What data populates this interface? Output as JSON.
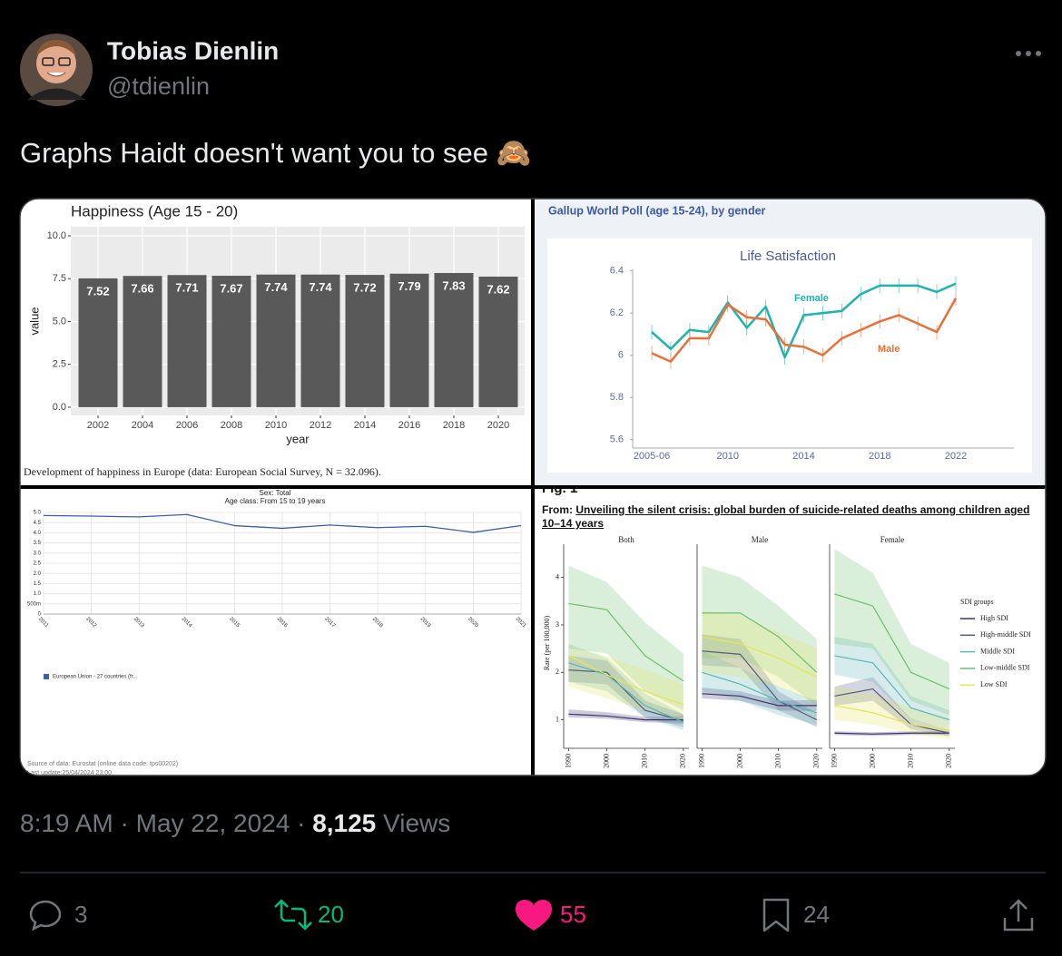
{
  "tweet": {
    "name": "Tobias Dienlin",
    "handle": "@tdienlin",
    "text": "Graphs Haidt doesn't want you to see 🙈",
    "time": "8:19 AM",
    "separator": "·",
    "date": "May 22, 2024",
    "views": "8,125",
    "views_label": "Views",
    "replies": 3,
    "reposts": 20,
    "likes": 55,
    "bookmarks": 24
  },
  "chart_data": [
    {
      "type": "bar",
      "title": "Happiness (Age 15 - 20)",
      "categories": [
        "2002",
        "2004",
        "2006",
        "2008",
        "2010",
        "2012",
        "2014",
        "2016",
        "2018",
        "2020"
      ],
      "values": [
        7.52,
        7.66,
        7.71,
        7.67,
        7.74,
        7.74,
        7.72,
        7.79,
        7.83,
        7.62
      ],
      "color": "#595959",
      "ylim": [
        -0.48,
        10.53
      ],
      "yticks": [
        {
          "value": 0,
          "label": "0.0"
        },
        2.5,
        {
          "value": 5,
          "label": "5.0"
        },
        7.5,
        {
          "value": 10,
          "label": "10.0"
        }
      ],
      "xlabel": "year",
      "ylabel": "value",
      "caption": "Development of happiness in Europe (data: European Social Survey, N = 32.096).",
      "grid": true
    },
    {
      "type": "line",
      "subtitle": "Gallup World Poll (age 15-24), by gender",
      "title": "Life Satisfaction",
      "categories": [
        "2005-06",
        null,
        null,
        null,
        "2010",
        null,
        null,
        null,
        "2014",
        null,
        null,
        null,
        "2018",
        null,
        null,
        null,
        "2022"
      ],
      "series": [
        {
          "name": "Female",
          "color": "#1fb3ae",
          "values": [
            6.11,
            6.03,
            6.12,
            6.11,
            6.25,
            6.13,
            6.23,
            5.99,
            6.19,
            6.2,
            6.21,
            6.29,
            6.33,
            6.33,
            6.33,
            6.3,
            6.34
          ]
        },
        {
          "name": "Male",
          "color": "#e8703a",
          "values": [
            6.01,
            5.97,
            6.08,
            6.08,
            6.24,
            6.18,
            6.17,
            6.05,
            6.04,
            6.0,
            6.08,
            6.12,
            6.16,
            6.19,
            6.15,
            6.11,
            6.27
          ]
        }
      ],
      "ylim": [
        5.56,
        6.45
      ],
      "yticks": [
        5.6,
        5.8,
        6,
        6.2,
        6.4
      ]
    },
    {
      "type": "line",
      "title": "Sex: Total",
      "subtitle": "Age class: From 15 to 19 years",
      "categories": [
        "2011",
        "2012",
        "2013",
        "2014",
        "2015",
        "2016",
        "2017",
        "2018",
        "2019",
        "2020",
        "2021"
      ],
      "series": [
        {
          "name": "European Union - 27 countries (fr...",
          "color": "#3c5fa8",
          "values": [
            4.85,
            4.82,
            4.78,
            4.9,
            4.35,
            4.22,
            4.38,
            4.25,
            4.32,
            4.02,
            4.35
          ]
        }
      ],
      "ylim": [
        0,
        5.2
      ],
      "yticks": [
        0,
        {
          "value": 0.5,
          "label": "500m"
        },
        {
          "value": 1,
          "label": "1.0"
        },
        1.5,
        {
          "value": 2,
          "label": "2.0"
        },
        2.5,
        {
          "value": 3,
          "label": "3.0"
        },
        3.5,
        {
          "value": 4,
          "label": "4.0"
        },
        4.5,
        {
          "value": 5,
          "label": "5.0"
        }
      ],
      "grid": true,
      "source": "Source of data: Eurostat (online data code: tps00202)",
      "updated": "Last update:25/04/2024 23:00"
    },
    {
      "type": "line",
      "figure_label": "Fig. 1",
      "header": "From: ",
      "title": "Unveiling the silent crisis: global burden of suicide-related deaths among children aged 10–14 years",
      "panel_titles": [
        "Both",
        "Male",
        "Female"
      ],
      "x": [
        1990,
        2000,
        2010,
        2020
      ],
      "xlim": [
        1988,
        2021
      ],
      "xticks": [
        1990,
        2000,
        2010,
        2020
      ],
      "ylabel": "Rate (per 100,000)",
      "ylim": [
        0.4,
        4.7
      ],
      "yticks": [
        1,
        2,
        3,
        4
      ],
      "legend_title": "SDI groups",
      "series": [
        {
          "name": "High SDI",
          "color": "#3d2f6e",
          "panels": [
            {
              "values": [
                1.12,
                1.08,
                1.0,
                1.0
              ],
              "lower": [
                1.05,
                1.02,
                0.95,
                0.92
              ],
              "upper": [
                1.22,
                1.16,
                1.06,
                1.08
              ]
            },
            {
              "values": [
                1.55,
                1.5,
                1.3,
                1.3
              ],
              "lower": [
                1.45,
                1.4,
                1.2,
                1.18
              ],
              "upper": [
                1.68,
                1.6,
                1.4,
                1.42
              ]
            },
            {
              "values": [
                0.72,
                0.7,
                0.72,
                0.72
              ],
              "lower": [
                0.68,
                0.66,
                0.68,
                0.68
              ],
              "upper": [
                0.76,
                0.74,
                0.76,
                0.76
              ]
            }
          ]
        },
        {
          "name": "High-middle SDI",
          "color": "#505d7e",
          "panels": [
            {
              "values": [
                2.05,
                2.0,
                1.2,
                0.98
              ],
              "lower": [
                1.8,
                1.75,
                1.05,
                0.85
              ],
              "upper": [
                2.35,
                2.25,
                1.4,
                1.12
              ]
            },
            {
              "values": [
                2.45,
                2.38,
                1.4,
                1.0
              ],
              "lower": [
                2.15,
                2.1,
                1.2,
                0.85
              ],
              "upper": [
                2.8,
                2.7,
                1.6,
                1.15
              ]
            },
            {
              "values": [
                1.5,
                1.65,
                0.9,
                0.72
              ],
              "lower": [
                1.3,
                1.4,
                0.8,
                0.65
              ],
              "upper": [
                1.7,
                1.9,
                1.02,
                0.8
              ]
            }
          ]
        },
        {
          "name": "Middle SDI",
          "color": "#5bb5b5",
          "panels": [
            {
              "values": [
                2.2,
                1.95,
                1.3,
                0.95
              ],
              "lower": [
                1.8,
                1.6,
                1.05,
                0.78
              ],
              "upper": [
                2.6,
                2.3,
                1.55,
                1.12
              ]
            },
            {
              "values": [
                2.0,
                1.75,
                1.4,
                1.15
              ],
              "lower": [
                1.6,
                1.4,
                1.1,
                0.9
              ],
              "upper": [
                2.45,
                2.1,
                1.7,
                1.4
              ]
            },
            {
              "values": [
                2.35,
                2.2,
                1.25,
                1.0
              ],
              "lower": [
                1.95,
                1.8,
                1.0,
                0.82
              ],
              "upper": [
                2.75,
                2.6,
                1.5,
                1.2
              ]
            }
          ]
        },
        {
          "name": "Low-middle SDI",
          "color": "#6cbf6c",
          "panels": [
            {
              "values": [
                3.45,
                3.32,
                2.35,
                1.82
              ],
              "lower": [
                2.5,
                2.4,
                1.6,
                1.2
              ],
              "upper": [
                4.25,
                3.9,
                3.05,
                2.4
              ]
            },
            {
              "values": [
                3.25,
                3.25,
                2.75,
                2.0
              ],
              "lower": [
                2.3,
                2.3,
                1.9,
                1.3
              ],
              "upper": [
                4.25,
                4.0,
                3.4,
                2.7
              ]
            },
            {
              "values": [
                3.65,
                3.4,
                2.0,
                1.65
              ],
              "lower": [
                2.6,
                2.5,
                1.4,
                1.1
              ],
              "upper": [
                4.6,
                4.1,
                2.6,
                2.2
              ]
            }
          ]
        },
        {
          "name": "Low SDI",
          "color": "#e5e55a",
          "panels": [
            {
              "values": [
                2.35,
                1.95,
                1.6,
                1.32
              ],
              "lower": [
                1.7,
                1.45,
                1.2,
                0.95
              ],
              "upper": [
                2.55,
                2.35,
                2.05,
                1.75
              ]
            },
            {
              "values": [
                2.75,
                2.6,
                2.3,
                1.9
              ],
              "lower": [
                2.0,
                1.9,
                1.7,
                1.35
              ],
              "upper": [
                3.3,
                3.2,
                2.85,
                2.5
              ]
            },
            {
              "values": [
                1.3,
                1.15,
                0.9,
                0.78
              ],
              "lower": [
                1.0,
                0.9,
                0.7,
                0.6
              ],
              "upper": [
                1.7,
                1.55,
                1.25,
                1.05
              ]
            }
          ]
        }
      ]
    }
  ]
}
